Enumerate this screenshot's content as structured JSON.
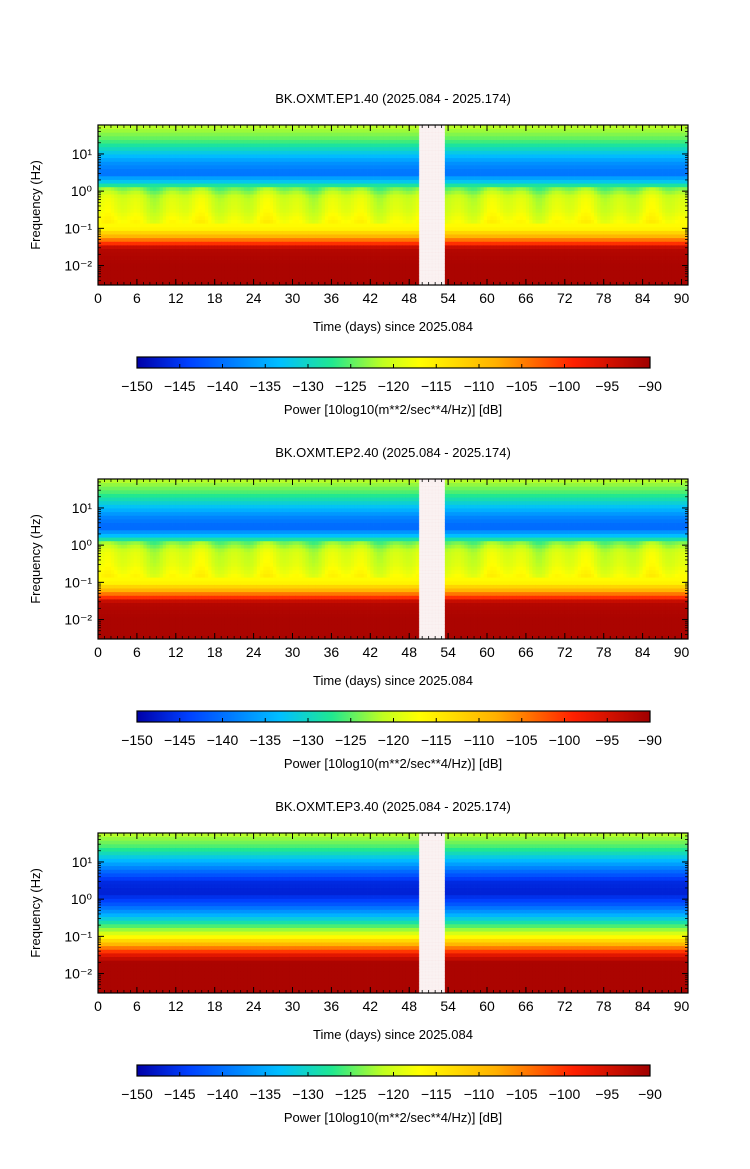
{
  "chart_data": [
    {
      "type": "heatmap",
      "title": "BK.OXMT.EP1.40 (2025.084 - 2025.174)",
      "xlabel": "Time (days) since 2025.084",
      "ylabel": "Frequency (Hz)",
      "x_ticks": [
        "0",
        "6",
        "12",
        "18",
        "24",
        "30",
        "36",
        "42",
        "48",
        "54",
        "60",
        "66",
        "72",
        "78",
        "84",
        "90"
      ],
      "y_ticks": [
        {
          "value": 10,
          "label": "10¹"
        },
        {
          "value": 1,
          "label": "10⁰"
        },
        {
          "value": 0.1,
          "label": "10⁻¹"
        },
        {
          "value": 0.01,
          "label": "10⁻²"
        }
      ],
      "xlim": [
        0,
        91
      ],
      "ylim": [
        0.003,
        60
      ],
      "y_scale": "log",
      "colorbar_label": "Power [10log10(m**2/sec**4/Hz)] [dB]",
      "colorbar_ticks": [
        "−150",
        "−145",
        "−140",
        "−135",
        "−130",
        "−125",
        "−120",
        "−115",
        "−110",
        "−105",
        "−100",
        "−95",
        "−90"
      ],
      "clim": [
        -150,
        -90
      ],
      "data_gap_days": [
        49.5,
        53.5
      ],
      "band_profile_db": [
        {
          "freq": 0.003,
          "db": -91
        },
        {
          "freq": 0.01,
          "db": -91
        },
        {
          "freq": 0.03,
          "db": -92
        },
        {
          "freq": 0.04,
          "db": -100
        },
        {
          "freq": 0.06,
          "db": -108
        },
        {
          "freq": 0.1,
          "db": -116
        },
        {
          "freq": 0.3,
          "db": -119
        },
        {
          "freq": 0.7,
          "db": -120
        },
        {
          "freq": 1.2,
          "db": -124
        },
        {
          "freq": 1.8,
          "db": -132
        },
        {
          "freq": 3,
          "db": -140
        },
        {
          "freq": 6,
          "db": -137
        },
        {
          "freq": 12,
          "db": -131
        },
        {
          "freq": 25,
          "db": -125
        },
        {
          "freq": 60,
          "db": -121
        }
      ],
      "diurnal_stripes": true
    },
    {
      "type": "heatmap",
      "title": "BK.OXMT.EP2.40 (2025.084 - 2025.174)",
      "xlabel": "Time (days) since 2025.084",
      "ylabel": "Frequency (Hz)",
      "x_ticks": [
        "0",
        "6",
        "12",
        "18",
        "24",
        "30",
        "36",
        "42",
        "48",
        "54",
        "60",
        "66",
        "72",
        "78",
        "84",
        "90"
      ],
      "y_ticks": [
        {
          "value": 10,
          "label": "10¹"
        },
        {
          "value": 1,
          "label": "10⁰"
        },
        {
          "value": 0.1,
          "label": "10⁻¹"
        },
        {
          "value": 0.01,
          "label": "10⁻²"
        }
      ],
      "xlim": [
        0,
        91
      ],
      "ylim": [
        0.003,
        60
      ],
      "y_scale": "log",
      "colorbar_label": "Power [10log10(m**2/sec**4/Hz)] [dB]",
      "colorbar_ticks": [
        "−150",
        "−145",
        "−140",
        "−135",
        "−130",
        "−125",
        "−120",
        "−115",
        "−110",
        "−105",
        "−100",
        "−95",
        "−90"
      ],
      "clim": [
        -150,
        -90
      ],
      "data_gap_days": [
        49.5,
        53.5
      ],
      "band_profile_db": [
        {
          "freq": 0.003,
          "db": -91
        },
        {
          "freq": 0.01,
          "db": -91
        },
        {
          "freq": 0.03,
          "db": -92
        },
        {
          "freq": 0.04,
          "db": -100
        },
        {
          "freq": 0.06,
          "db": -108
        },
        {
          "freq": 0.1,
          "db": -116
        },
        {
          "freq": 0.3,
          "db": -119
        },
        {
          "freq": 0.7,
          "db": -120
        },
        {
          "freq": 1.2,
          "db": -124
        },
        {
          "freq": 1.8,
          "db": -133
        },
        {
          "freq": 3,
          "db": -141
        },
        {
          "freq": 6,
          "db": -138
        },
        {
          "freq": 12,
          "db": -132
        },
        {
          "freq": 25,
          "db": -126
        },
        {
          "freq": 60,
          "db": -121
        }
      ],
      "diurnal_stripes": true
    },
    {
      "type": "heatmap",
      "title": "BK.OXMT.EP3.40 (2025.084 - 2025.174)",
      "xlabel": "Time (days) since 2025.084",
      "ylabel": "Frequency (Hz)",
      "x_ticks": [
        "0",
        "6",
        "12",
        "18",
        "24",
        "30",
        "36",
        "42",
        "48",
        "54",
        "60",
        "66",
        "72",
        "78",
        "84",
        "90"
      ],
      "y_ticks": [
        {
          "value": 10,
          "label": "10¹"
        },
        {
          "value": 1,
          "label": "10⁰"
        },
        {
          "value": 0.1,
          "label": "10⁻¹"
        },
        {
          "value": 0.01,
          "label": "10⁻²"
        }
      ],
      "xlim": [
        0,
        91
      ],
      "ylim": [
        0.003,
        60
      ],
      "y_scale": "log",
      "colorbar_label": "Power [10log10(m**2/sec**4/Hz)] [dB]",
      "colorbar_ticks": [
        "−150",
        "−145",
        "−140",
        "−135",
        "−130",
        "−125",
        "−120",
        "−115",
        "−110",
        "−105",
        "−100",
        "−95",
        "−90"
      ],
      "clim": [
        -150,
        -90
      ],
      "data_gap_days": [
        49.5,
        53.5
      ],
      "band_profile_db": [
        {
          "freq": 0.003,
          "db": -91
        },
        {
          "freq": 0.02,
          "db": -91
        },
        {
          "freq": 0.03,
          "db": -95
        },
        {
          "freq": 0.06,
          "db": -108
        },
        {
          "freq": 0.1,
          "db": -117
        },
        {
          "freq": 0.2,
          "db": -126
        },
        {
          "freq": 0.4,
          "db": -135
        },
        {
          "freq": 0.8,
          "db": -143
        },
        {
          "freq": 1.5,
          "db": -147
        },
        {
          "freq": 3,
          "db": -146
        },
        {
          "freq": 6,
          "db": -140
        },
        {
          "freq": 12,
          "db": -133
        },
        {
          "freq": 25,
          "db": -126
        },
        {
          "freq": 60,
          "db": -121
        }
      ],
      "diurnal_stripes": false
    }
  ]
}
